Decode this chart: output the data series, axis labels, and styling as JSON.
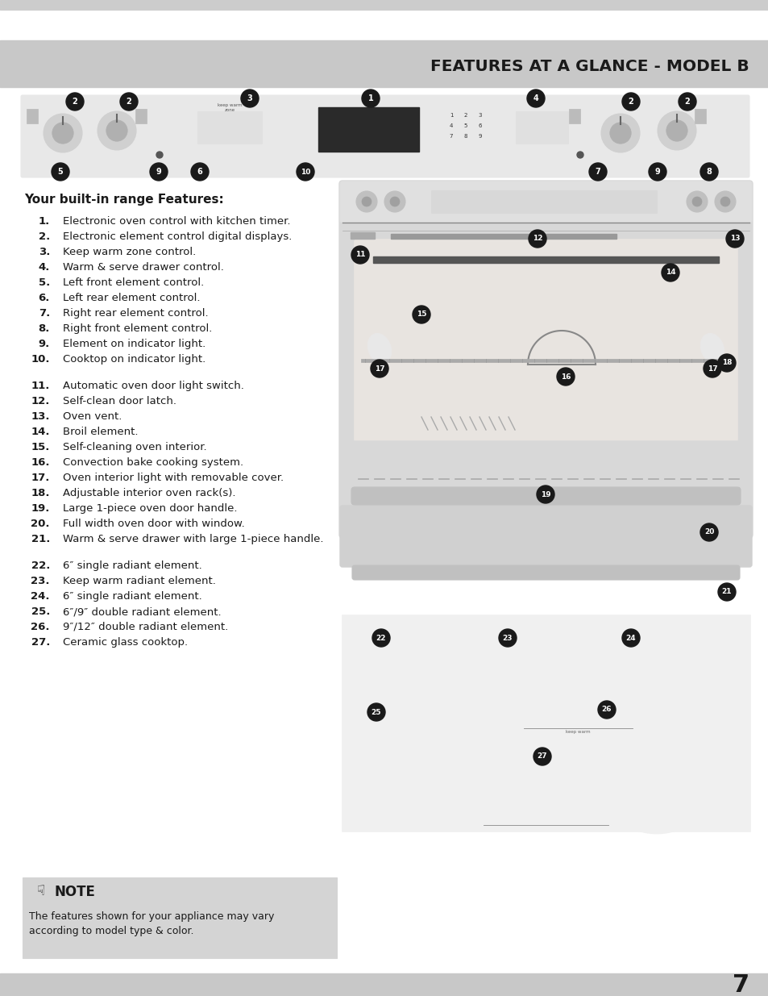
{
  "title": "FEATURES AT A GLANCE - MODEL B",
  "title_color": "#1a1a1a",
  "page_bg": "#ffffff",
  "page_number": "7",
  "section_heading": "Your built-in range Features:",
  "features_1_10": [
    [
      "1.",
      "Electronic oven control with kitchen timer."
    ],
    [
      "2.",
      "Electronic element control digital displays."
    ],
    [
      "3.",
      "Keep warm zone control."
    ],
    [
      "4.",
      "Warm & serve drawer control."
    ],
    [
      "5.",
      "Left front element control."
    ],
    [
      "6.",
      "Left rear element control."
    ],
    [
      "7.",
      "Right rear element control."
    ],
    [
      "8.",
      "Right front element control."
    ],
    [
      "9.",
      "Element on indicator light."
    ],
    [
      "10.",
      "Cooktop on indicator light."
    ]
  ],
  "features_11_21": [
    [
      "11.",
      "Automatic oven door light switch."
    ],
    [
      "12.",
      "Self-clean door latch."
    ],
    [
      "13.",
      "Oven vent."
    ],
    [
      "14.",
      "Broil element."
    ],
    [
      "15.",
      "Self-cleaning oven interior."
    ],
    [
      "16.",
      "Convection bake cooking system."
    ],
    [
      "17.",
      "Oven interior light with removable cover."
    ],
    [
      "18.",
      "Adjustable interior oven rack(s)."
    ],
    [
      "19.",
      "Large 1-piece oven door handle."
    ],
    [
      "20.",
      "Full width oven door with window."
    ],
    [
      "21.",
      "Warm & serve drawer with large 1-piece handle."
    ]
  ],
  "features_22_27": [
    [
      "22.",
      "6″ single radiant element."
    ],
    [
      "23.",
      "Keep warm radiant element."
    ],
    [
      "24.",
      "6″ single radiant element."
    ],
    [
      "25.",
      "6″/9″ double radiant element."
    ],
    [
      "26.",
      "9″/12″ double radiant element."
    ],
    [
      "27.",
      "Ceramic glass cooktop."
    ]
  ],
  "note_bg": "#d4d4d4",
  "note_title": "NOTE",
  "note_text": "The features shown for your appliance may vary\naccording to model type & color."
}
